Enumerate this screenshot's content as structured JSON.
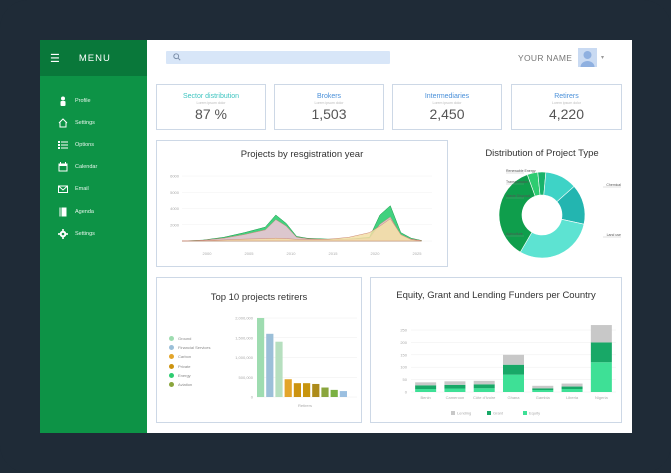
{
  "sidebar": {
    "menu_label": "MENU",
    "items": [
      {
        "label": "Profile",
        "icon": "user-icon"
      },
      {
        "label": "Settings",
        "icon": "home-icon"
      },
      {
        "label": "Options",
        "icon": "list-icon"
      },
      {
        "label": "Calendar",
        "icon": "calendar-icon"
      },
      {
        "label": "Email",
        "icon": "envelope-icon"
      },
      {
        "label": "Agenda",
        "icon": "book-icon"
      },
      {
        "label": "Settings",
        "icon": "gear-icon"
      }
    ]
  },
  "header": {
    "search": {
      "icon": "search-icon",
      "placeholder": ""
    },
    "user_name": "YOUR NAME",
    "avatar_icon": "user-avatar-icon",
    "caret": "▾"
  },
  "kpis": [
    {
      "title": "Sector distribution",
      "subtitle": "Lorem ipsum dolor",
      "value": "87 %",
      "color": "#3ec4c0"
    },
    {
      "title": "Brokers",
      "subtitle": "Lorem ipsum dolor",
      "value": "1,503",
      "color": "#4a90d9"
    },
    {
      "title": "Intermediaries",
      "subtitle": "Lorem ipsum dolor",
      "value": "2,450",
      "color": "#4a90d9"
    },
    {
      "title": "Retirers",
      "subtitle": "Lorem ipsum dolor",
      "value": "4,220",
      "color": "#4a90d9"
    }
  ],
  "colors": {
    "sidebar": "#0d9346",
    "sidebar_dark": "#09783a",
    "accent_green": "#2ecc71",
    "pink": "#f7c6dc",
    "sand": "#f3dfa6"
  },
  "chart_data": [
    {
      "type": "area",
      "title": "Projects by resgistration year",
      "x": [
        2000,
        2002,
        2004,
        2006,
        2008,
        2009,
        2010,
        2011,
        2012,
        2014,
        2016,
        2018,
        2019,
        2020,
        2021,
        2022,
        2023
      ],
      "x_ticks": [
        "2000",
        "2005",
        "2010",
        "2015",
        "2020",
        "2025"
      ],
      "y_ticks": [
        "",
        "2000",
        "4000",
        "5000",
        "6000"
      ],
      "ylim": [
        0,
        7000
      ],
      "series": [
        {
          "values": [
            0,
            100,
            400,
            900,
            1500,
            2800,
            1900,
            500,
            300,
            200,
            200,
            400,
            2800,
            3800,
            900,
            300,
            50
          ],
          "color": "#2ecc71"
        },
        {
          "values": [
            0,
            80,
            300,
            700,
            1200,
            2300,
            1600,
            400,
            250,
            150,
            180,
            300,
            1800,
            2600,
            600,
            200,
            30
          ],
          "color": "#f7c6dc"
        },
        {
          "values": [
            0,
            30,
            120,
            200,
            260,
            300,
            260,
            180,
            150,
            180,
            400,
            900,
            1600,
            2400,
            700,
            150,
            20
          ],
          "color": "#f3dfa6"
        }
      ]
    },
    {
      "type": "pie",
      "title": "Distribution of Project Type",
      "slices": [
        {
          "label": "Renewable Energy",
          "value": 4,
          "color": "#2ecc71"
        },
        {
          "label": "Transportation",
          "value": 3,
          "color": "#17b26a"
        },
        {
          "label": "Waste Disposal",
          "value": 12,
          "color": "#3ed3c6"
        },
        {
          "label": "Agriculture",
          "value": 15,
          "color": "#23b5b0"
        },
        {
          "label": "Land use",
          "value": 30,
          "color": "#5de3d2"
        },
        {
          "label": "Chemical",
          "value": 36,
          "color": "#0f9e4c"
        }
      ],
      "labels_left": [
        "Renewable Energy",
        "Transportation",
        "Waste Disposal",
        "Agriculture"
      ],
      "labels_right": [
        "Chemical",
        "Land use"
      ],
      "label_subs": [
        "",
        "",
        "",
        "",
        "",
        ""
      ]
    },
    {
      "type": "bar",
      "title": "Top 10 projects retirers",
      "categories": [
        "Ground",
        "Financial Services",
        "Carbon",
        "Private",
        "Energy",
        "Aviation",
        "",
        "",
        "",
        "",
        ""
      ],
      "values": [
        2000000,
        1600000,
        1400000,
        450000,
        350000,
        350000,
        330000,
        240000,
        180000,
        150000,
        0
      ],
      "colors": [
        "#9edcb0",
        "#9bbfd8",
        "#b6dfbf",
        "#e3a52b",
        "#cc9310",
        "#c8950e",
        "#ad8b1a",
        "#8aa53d",
        "#7bb043",
        "#9bbfe0",
        "#7ab4e0"
      ],
      "y_ticks": [
        "0",
        "500,000",
        "1,000,000",
        "1,500,000",
        "2,000,000"
      ],
      "ylim": [
        0,
        2000000
      ],
      "xlabel": "Retirers",
      "legend": [
        {
          "label": "Ground",
          "color": "#9edcb0"
        },
        {
          "label": "Financial Services",
          "color": "#9bbfd8"
        },
        {
          "label": "Carbon",
          "color": "#e3a52b"
        },
        {
          "label": "Private",
          "color": "#cc9310"
        },
        {
          "label": "Energy",
          "color": "#2ecc71"
        },
        {
          "label": "Aviation",
          "color": "#8aa53d"
        }
      ]
    },
    {
      "type": "bar",
      "title": "Equity, Grant and Lending Funders per Country",
      "categories": [
        "Benin",
        "Cameroon",
        "Côte d'Ivoire",
        "Ghana",
        "Gambia",
        "Liberia",
        "Nigeria"
      ],
      "series": [
        {
          "name": "Equity",
          "values": [
            12,
            14,
            15,
            70,
            8,
            12,
            120
          ],
          "color": "#3ee096"
        },
        {
          "name": "Grant",
          "values": [
            15,
            15,
            16,
            40,
            7,
            10,
            80
          ],
          "color": "#18a867"
        },
        {
          "name": "Lending",
          "values": [
            12,
            14,
            14,
            40,
            10,
            12,
            70
          ],
          "color": "#c8c8c8"
        }
      ],
      "y_ticks": [
        "0",
        "50",
        "100",
        "150",
        "200",
        "250"
      ],
      "ylim": [
        0,
        250
      ]
    }
  ]
}
